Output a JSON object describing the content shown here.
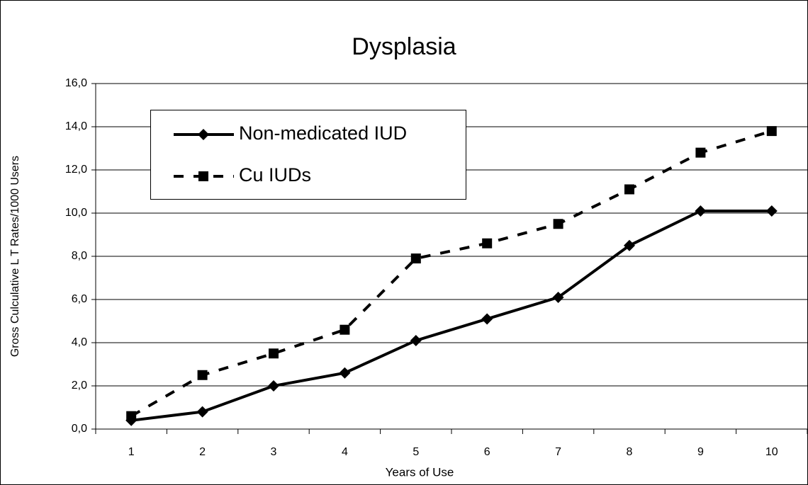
{
  "chart_data": {
    "type": "line",
    "title": "Dysplasia",
    "x_label": "Years of Use",
    "y_label": "Gross Culculative L T Rates/1000 Users",
    "categories": [
      "1",
      "2",
      "3",
      "4",
      "5",
      "6",
      "7",
      "8",
      "9",
      "10"
    ],
    "series": [
      {
        "name": "Non-medicated IUD",
        "color": "#000000",
        "line_style": "solid",
        "marker": "diamond",
        "values": [
          0.4,
          0.8,
          2.0,
          2.6,
          4.1,
          5.1,
          6.1,
          8.5,
          10.1,
          10.1
        ]
      },
      {
        "name": "Cu IUDs",
        "color": "#000000",
        "line_style": "dashed",
        "marker": "square",
        "values": [
          0.6,
          2.5,
          3.5,
          4.6,
          7.9,
          8.6,
          9.5,
          11.1,
          12.8,
          13.8
        ]
      }
    ],
    "ylim": [
      0,
      16
    ],
    "yticks": [
      {
        "value": 0,
        "label": "0,0"
      },
      {
        "value": 2,
        "label": "2,0"
      },
      {
        "value": 4,
        "label": "4,0"
      },
      {
        "value": 6,
        "label": "6,0"
      },
      {
        "value": 8,
        "label": "8,0"
      },
      {
        "value": 10,
        "label": "10,0"
      },
      {
        "value": 12,
        "label": "12,0"
      },
      {
        "value": 14,
        "label": "14,0"
      },
      {
        "value": 16,
        "label": "16,0"
      }
    ],
    "grid": true,
    "legend": "upper left"
  }
}
